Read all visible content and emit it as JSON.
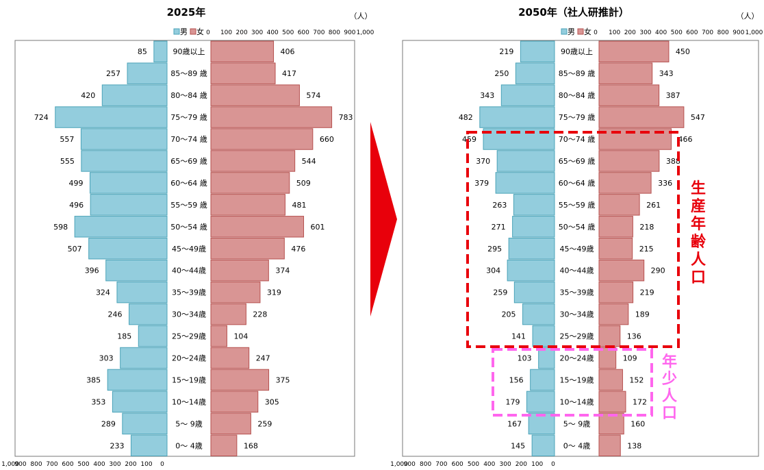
{
  "chart_data": [
    {
      "type": "bar",
      "title": "2025年",
      "unit": "（人）",
      "legend": [
        "男",
        "女"
      ],
      "legend_position": "top-right",
      "categories": [
        "90歳以上",
        "85～89 歳",
        "80～84 歳",
        "75～79 歳",
        "70～74 歳",
        "65～69 歳",
        "60～64 歳",
        "55～59 歳",
        "50～54 歳",
        "45～49歳",
        "40～44歳",
        "35～39歳",
        "30～34歳",
        "25～29歳",
        "20～24歳",
        "15～19歳",
        "10～14歳",
        "5～ 9歳",
        "0～ 4歳"
      ],
      "series": [
        {
          "name": "男",
          "values": [
            85,
            257,
            420,
            724,
            557,
            555,
            499,
            496,
            598,
            507,
            396,
            324,
            246,
            185,
            303,
            385,
            353,
            289,
            233
          ]
        },
        {
          "name": "女",
          "values": [
            406,
            417,
            574,
            783,
            660,
            544,
            509,
            481,
            601,
            476,
            374,
            319,
            228,
            104,
            247,
            375,
            305,
            259,
            168
          ]
        }
      ],
      "male_axis_ticks": [
        "1,000",
        "900",
        "800",
        "700",
        "600",
        "500",
        "400",
        "300",
        "200",
        "100",
        "0"
      ],
      "female_axis_ticks": [
        "0",
        "100",
        "200",
        "300",
        "400",
        "500",
        "600",
        "700",
        "800",
        "900",
        "1,000"
      ],
      "xlim": [
        0,
        1000
      ],
      "grid": false
    },
    {
      "type": "bar",
      "title": "2050年（社人研推計）",
      "unit": "（人）",
      "legend": [
        "男",
        "女"
      ],
      "legend_position": "top-right",
      "categories": [
        "90歳以上",
        "85～89 歳",
        "80～84 歳",
        "75～79 歳",
        "70～74 歳",
        "65～69 歳",
        "60～64 歳",
        "55～59 歳",
        "50～54 歳",
        "45～49歳",
        "40～44歳",
        "35～39歳",
        "30～34歳",
        "25～29歳",
        "20～24歳",
        "15～19歳",
        "10～14歳",
        "5～ 9歳",
        "0～ 4歳"
      ],
      "series": [
        {
          "name": "男",
          "values": [
            219,
            250,
            343,
            482,
            459,
            370,
            379,
            263,
            271,
            295,
            304,
            259,
            205,
            141,
            103,
            156,
            179,
            167,
            145
          ]
        },
        {
          "name": "女",
          "values": [
            450,
            343,
            387,
            547,
            466,
            388,
            336,
            261,
            218,
            215,
            290,
            219,
            189,
            136,
            109,
            152,
            172,
            160,
            138
          ]
        }
      ],
      "male_axis_ticks": [
        "1,000",
        "900",
        "800",
        "700",
        "600",
        "500",
        "400",
        "300",
        "200",
        "100",
        "0"
      ],
      "female_axis_ticks": [
        "0",
        "100",
        "200",
        "300",
        "400",
        "500",
        "600",
        "700",
        "800",
        "900",
        "1,000"
      ],
      "xlim": [
        0,
        1000
      ],
      "grid": false,
      "annotations": [
        {
          "text": "生産年齢人口",
          "color": "#e8000b",
          "rows": [
            "70～74 歳",
            "25～29歳"
          ]
        },
        {
          "text": "年少人口",
          "color": "#ff66ee",
          "rows": [
            "20～24歳",
            "10～14歳"
          ]
        }
      ]
    }
  ],
  "colors": {
    "male": "#93cddd",
    "male_edge": "#4ba3b8",
    "female": "#d99594",
    "female_edge": "#b5504e",
    "arrow": "#e8000b",
    "productive_box": "#e8000b",
    "youth_box": "#ff66ee"
  },
  "icons": {
    "transition_arrow": "arrow-right-icon"
  }
}
